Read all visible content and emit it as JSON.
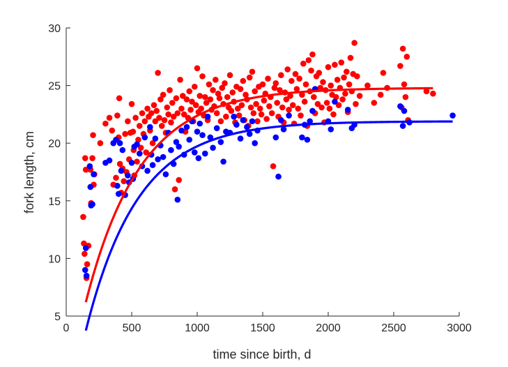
{
  "chart_data": {
    "type": "scatter",
    "title": "",
    "xlabel": "time since birth, d",
    "ylabel": "fork length, cm",
    "xlim": [
      0,
      3000
    ],
    "ylim": [
      5,
      30
    ],
    "xticks": [
      0,
      500,
      1000,
      1500,
      2000,
      2500,
      3000
    ],
    "yticks": [
      5,
      10,
      15,
      20,
      25,
      30
    ],
    "xtick_labels": [
      "0",
      "500",
      "1000",
      "1500",
      "2000",
      "2500",
      "3000"
    ],
    "ytick_labels": [
      "5",
      "10",
      "15",
      "20",
      "25",
      "30"
    ],
    "grid": false,
    "legend": "none",
    "series": [
      {
        "color": "#ff0000",
        "points": [
          [
            130,
            13.6
          ],
          [
            135,
            11.3
          ],
          [
            140,
            10.4
          ],
          [
            145,
            18.7
          ],
          [
            150,
            17.7
          ],
          [
            155,
            8.3
          ],
          [
            160,
            9.5
          ],
          [
            170,
            11.1
          ],
          [
            185,
            17.7
          ],
          [
            190,
            14.8
          ],
          [
            200,
            18.7
          ],
          [
            205,
            20.7
          ],
          [
            210,
            16.4
          ],
          [
            215,
            17.3
          ],
          [
            260,
            20.0
          ],
          [
            300,
            21.7
          ],
          [
            330,
            22.2
          ],
          [
            350,
            21.1
          ],
          [
            360,
            16.4
          ],
          [
            380,
            17.0
          ],
          [
            390,
            22.4
          ],
          [
            400,
            20.5
          ],
          [
            405,
            23.9
          ],
          [
            410,
            18.2
          ],
          [
            420,
            15.7
          ],
          [
            430,
            17.8
          ],
          [
            440,
            16.7
          ],
          [
            450,
            20.8
          ],
          [
            460,
            17.5
          ],
          [
            470,
            21.9
          ],
          [
            480,
            18.6
          ],
          [
            490,
            20.9
          ],
          [
            500,
            23.4
          ],
          [
            510,
            21.0
          ],
          [
            515,
            19.4
          ],
          [
            520,
            17.2
          ],
          [
            530,
            22.2
          ],
          [
            540,
            18.4
          ],
          [
            550,
            20.3
          ],
          [
            560,
            21.5
          ],
          [
            570,
            19.6
          ],
          [
            580,
            22.6
          ],
          [
            590,
            20.8
          ],
          [
            600,
            21.9
          ],
          [
            610,
            19.2
          ],
          [
            620,
            23.0
          ],
          [
            630,
            22.3
          ],
          [
            640,
            21.1
          ],
          [
            650,
            22.6
          ],
          [
            660,
            20.0
          ],
          [
            670,
            23.3
          ],
          [
            680,
            21.9
          ],
          [
            690,
            22.8
          ],
          [
            700,
            26.1
          ],
          [
            710,
            22.2
          ],
          [
            720,
            23.8
          ],
          [
            730,
            21.5
          ],
          [
            740,
            24.2
          ],
          [
            750,
            22.0
          ],
          [
            760,
            20.9
          ],
          [
            770,
            23.1
          ],
          [
            780,
            22.5
          ],
          [
            790,
            24.6
          ],
          [
            800,
            21.8
          ],
          [
            810,
            23.5
          ],
          [
            820,
            22.3
          ],
          [
            830,
            16.0
          ],
          [
            840,
            23.9
          ],
          [
            850,
            22.6
          ],
          [
            860,
            16.8
          ],
          [
            870,
            25.5
          ],
          [
            880,
            23.0
          ],
          [
            890,
            24.1
          ],
          [
            900,
            22.5
          ],
          [
            910,
            21.0
          ],
          [
            920,
            23.8
          ],
          [
            930,
            22.2
          ],
          [
            940,
            24.5
          ],
          [
            950,
            22.9
          ],
          [
            960,
            23.6
          ],
          [
            970,
            21.9
          ],
          [
            980,
            24.9
          ],
          [
            990,
            23.3
          ],
          [
            1000,
            26.5
          ],
          [
            1010,
            22.7
          ],
          [
            1020,
            24.1
          ],
          [
            1030,
            23.0
          ],
          [
            1040,
            25.8
          ],
          [
            1050,
            22.4
          ],
          [
            1060,
            24.0
          ],
          [
            1070,
            23.5
          ],
          [
            1080,
            22.0
          ],
          [
            1090,
            25.1
          ],
          [
            1100,
            23.8
          ],
          [
            1110,
            22.9
          ],
          [
            1120,
            24.6
          ],
          [
            1130,
            23.2
          ],
          [
            1140,
            25.5
          ],
          [
            1150,
            22.6
          ],
          [
            1160,
            24.3
          ],
          [
            1170,
            23.9
          ],
          [
            1180,
            21.9
          ],
          [
            1190,
            24.8
          ],
          [
            1200,
            23.4
          ],
          [
            1210,
            25.2
          ],
          [
            1220,
            22.3
          ],
          [
            1230,
            24.0
          ],
          [
            1240,
            23.1
          ],
          [
            1250,
            25.9
          ],
          [
            1260,
            22.8
          ],
          [
            1270,
            24.4
          ],
          [
            1280,
            23.6
          ],
          [
            1290,
            21.8
          ],
          [
            1300,
            24.9
          ],
          [
            1310,
            23.0
          ],
          [
            1320,
            22.4
          ],
          [
            1330,
            24.7
          ],
          [
            1340,
            23.3
          ],
          [
            1350,
            25.4
          ],
          [
            1360,
            22.0
          ],
          [
            1370,
            24.2
          ],
          [
            1380,
            23.8
          ],
          [
            1390,
            21.5
          ],
          [
            1400,
            25.7
          ],
          [
            1410,
            23.1
          ],
          [
            1420,
            26.2
          ],
          [
            1430,
            22.6
          ],
          [
            1440,
            24.5
          ],
          [
            1450,
            23.4
          ],
          [
            1460,
            21.9
          ],
          [
            1470,
            24.9
          ],
          [
            1480,
            23.0
          ],
          [
            1490,
            22.5
          ],
          [
            1500,
            25.1
          ],
          [
            1510,
            23.7
          ],
          [
            1520,
            24.3
          ],
          [
            1530,
            22.1
          ],
          [
            1540,
            25.6
          ],
          [
            1550,
            23.2
          ],
          [
            1560,
            24.0
          ],
          [
            1570,
            22.6
          ],
          [
            1580,
            18.0
          ],
          [
            1590,
            24.8
          ],
          [
            1600,
            25.2
          ],
          [
            1610,
            23.5
          ],
          [
            1620,
            22.3
          ],
          [
            1630,
            24.6
          ],
          [
            1640,
            25.9
          ],
          [
            1650,
            23.1
          ],
          [
            1660,
            21.8
          ],
          [
            1670,
            24.4
          ],
          [
            1680,
            23.8
          ],
          [
            1690,
            26.4
          ],
          [
            1700,
            22.9
          ],
          [
            1710,
            24.1
          ],
          [
            1720,
            25.4
          ],
          [
            1730,
            23.3
          ],
          [
            1740,
            21.7
          ],
          [
            1750,
            26.0
          ],
          [
            1760,
            24.7
          ],
          [
            1770,
            23.0
          ],
          [
            1780,
            25.6
          ],
          [
            1790,
            22.4
          ],
          [
            1800,
            24.2
          ],
          [
            1810,
            26.9
          ],
          [
            1820,
            23.6
          ],
          [
            1830,
            25.1
          ],
          [
            1840,
            21.5
          ],
          [
            1850,
            27.2
          ],
          [
            1860,
            24.5
          ],
          [
            1870,
            26.3
          ],
          [
            1880,
            27.7
          ],
          [
            1890,
            24.0
          ],
          [
            1900,
            22.6
          ],
          [
            1910,
            25.8
          ],
          [
            1920,
            23.4
          ],
          [
            1930,
            26.1
          ],
          [
            1940,
            24.8
          ],
          [
            1950,
            23.1
          ],
          [
            1960,
            25.3
          ],
          [
            1970,
            21.8
          ],
          [
            1980,
            24.6
          ],
          [
            1990,
            23.5
          ],
          [
            2000,
            26.6
          ],
          [
            2010,
            23.0
          ],
          [
            2020,
            25.0
          ],
          [
            2030,
            24.2
          ],
          [
            2040,
            22.5
          ],
          [
            2050,
            26.8
          ],
          [
            2060,
            24.0
          ],
          [
            2070,
            25.5
          ],
          [
            2080,
            23.3
          ],
          [
            2090,
            24.8
          ],
          [
            2100,
            27.0
          ],
          [
            2110,
            23.8
          ],
          [
            2120,
            25.7
          ],
          [
            2130,
            24.3
          ],
          [
            2140,
            26.2
          ],
          [
            2150,
            22.7
          ],
          [
            2160,
            25.1
          ],
          [
            2170,
            27.4
          ],
          [
            2180,
            24.5
          ],
          [
            2190,
            26.0
          ],
          [
            2200,
            28.7
          ],
          [
            2210,
            23.4
          ],
          [
            2220,
            25.8
          ],
          [
            2240,
            24.1
          ],
          [
            2300,
            25.0
          ],
          [
            2350,
            23.5
          ],
          [
            2400,
            24.2
          ],
          [
            2420,
            26.1
          ],
          [
            2450,
            24.8
          ],
          [
            2550,
            26.7
          ],
          [
            2560,
            23.1
          ],
          [
            2570,
            28.2
          ],
          [
            2580,
            25.1
          ],
          [
            2590,
            24.0
          ],
          [
            2600,
            27.5
          ],
          [
            2610,
            22.0
          ],
          [
            2750,
            24.5
          ],
          [
            2800,
            24.3
          ]
        ]
      },
      {
        "color": "#0000ff",
        "points": [
          [
            145,
            9.0
          ],
          [
            150,
            10.9
          ],
          [
            155,
            8.5
          ],
          [
            180,
            18.0
          ],
          [
            185,
            16.2
          ],
          [
            190,
            14.6
          ],
          [
            200,
            14.7
          ],
          [
            210,
            17.3
          ],
          [
            300,
            18.3
          ],
          [
            330,
            18.5
          ],
          [
            360,
            20.0
          ],
          [
            380,
            20.3
          ],
          [
            390,
            16.3
          ],
          [
            400,
            15.6
          ],
          [
            410,
            20.0
          ],
          [
            420,
            17.6
          ],
          [
            430,
            19.4
          ],
          [
            450,
            15.5
          ],
          [
            470,
            17.2
          ],
          [
            480,
            16.6
          ],
          [
            500,
            18.3
          ],
          [
            510,
            16.9
          ],
          [
            520,
            19.7
          ],
          [
            540,
            19.9
          ],
          [
            560,
            19.1
          ],
          [
            580,
            18.0
          ],
          [
            600,
            20.5
          ],
          [
            620,
            17.6
          ],
          [
            640,
            21.4
          ],
          [
            650,
            19.0
          ],
          [
            660,
            18.1
          ],
          [
            680,
            20.4
          ],
          [
            700,
            18.6
          ],
          [
            720,
            19.8
          ],
          [
            740,
            18.8
          ],
          [
            760,
            17.3
          ],
          [
            780,
            20.9
          ],
          [
            800,
            19.4
          ],
          [
            820,
            18.2
          ],
          [
            840,
            20.1
          ],
          [
            850,
            15.1
          ],
          [
            860,
            19.7
          ],
          [
            880,
            21.1
          ],
          [
            900,
            19.0
          ],
          [
            920,
            21.4
          ],
          [
            940,
            20.3
          ],
          [
            960,
            21.9
          ],
          [
            980,
            19.2
          ],
          [
            1000,
            21.0
          ],
          [
            1010,
            18.7
          ],
          [
            1020,
            21.7
          ],
          [
            1040,
            20.7
          ],
          [
            1060,
            19.1
          ],
          [
            1080,
            22.3
          ],
          [
            1100,
            20.5
          ],
          [
            1120,
            19.6
          ],
          [
            1150,
            21.3
          ],
          [
            1180,
            20.1
          ],
          [
            1200,
            18.4
          ],
          [
            1220,
            21.0
          ],
          [
            1250,
            20.9
          ],
          [
            1280,
            22.3
          ],
          [
            1300,
            21.6
          ],
          [
            1330,
            20.4
          ],
          [
            1350,
            22.0
          ],
          [
            1380,
            21.4
          ],
          [
            1400,
            20.8
          ],
          [
            1420,
            21.9
          ],
          [
            1440,
            20.0
          ],
          [
            1460,
            21.1
          ],
          [
            1600,
            20.5
          ],
          [
            1620,
            17.1
          ],
          [
            1640,
            22.0
          ],
          [
            1660,
            21.2
          ],
          [
            1700,
            22.4
          ],
          [
            1800,
            20.5
          ],
          [
            1820,
            21.6
          ],
          [
            1840,
            20.3
          ],
          [
            1860,
            21.9
          ],
          [
            1880,
            22.8
          ],
          [
            1900,
            24.7
          ],
          [
            2000,
            21.9
          ],
          [
            2020,
            21.2
          ],
          [
            2050,
            23.6
          ],
          [
            2150,
            22.9
          ],
          [
            2180,
            21.3
          ],
          [
            2200,
            21.6
          ],
          [
            2550,
            23.2
          ],
          [
            2570,
            21.5
          ],
          [
            2580,
            22.8
          ],
          [
            2620,
            21.8
          ],
          [
            2950,
            22.4
          ]
        ]
      }
    ],
    "fits": [
      {
        "color": "#ff0000",
        "Linf": 24.8,
        "k": 0.0024,
        "t0": 30,
        "tmin": 150,
        "tmax": 2800
      },
      {
        "color": "#0000ff",
        "Linf": 21.9,
        "k": 0.0025,
        "t0": 75,
        "tmin": 150,
        "tmax": 2950
      }
    ]
  }
}
